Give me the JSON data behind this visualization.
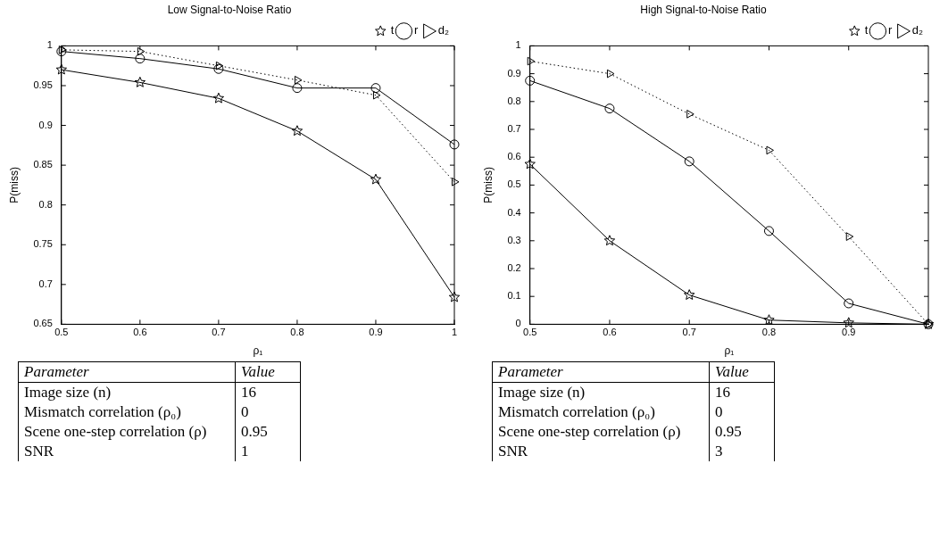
{
  "chart_data": [
    {
      "type": "line",
      "title": "Low Signal-to-Noise Ratio",
      "xlabel": "ρ₁",
      "ylabel": "P(miss)",
      "x": [
        0.5,
        0.6,
        0.7,
        0.8,
        0.9,
        1
      ],
      "xlim": [
        0.5,
        1
      ],
      "xticks": [
        0.5,
        0.6,
        0.7,
        0.8,
        0.9,
        1
      ],
      "ylim": [
        0.65,
        1
      ],
      "yticks": [
        0.65,
        0.7,
        0.75,
        0.8,
        0.85,
        0.9,
        0.95,
        1
      ],
      "legend": "top right",
      "grid": false,
      "series": [
        {
          "name": "t",
          "color": "#000000",
          "marker": "star",
          "line_style": "solid",
          "values": [
            0.97,
            0.954,
            0.934,
            0.893,
            0.832,
            0.684
          ]
        },
        {
          "name": "r",
          "color": "#000000",
          "marker": "circle",
          "line_style": "solid",
          "values": [
            0.993,
            0.984,
            0.971,
            0.947,
            0.947,
            0.876
          ]
        },
        {
          "name": "d₂",
          "color": "#000000",
          "marker": "triangle",
          "line_style": "dotted",
          "values": [
            0.995,
            0.993,
            0.975,
            0.957,
            0.938,
            0.829
          ]
        }
      ],
      "annotations": [
        "Parameter",
        "Value",
        "Image size (n)",
        "16",
        "Mismatch correlation (ρ₀)",
        "0",
        "Scene one-step correlation (ρ)",
        "0.95",
        "SNR",
        "1"
      ]
    },
    {
      "type": "line",
      "title": "High Signal-to-Noise Ratio",
      "xlabel": "ρ₁",
      "ylabel": "P(miss)",
      "x": [
        0.5,
        0.6,
        0.7,
        0.8,
        0.9,
        1
      ],
      "xlim": [
        0.5,
        1
      ],
      "xticks": [
        0.5,
        0.6,
        0.7,
        0.8,
        0.9
      ],
      "ylim": [
        0,
        1
      ],
      "yticks": [
        0,
        0.1,
        0.2,
        0.3,
        0.4,
        0.5,
        0.6,
        0.7,
        0.8,
        0.9,
        1
      ],
      "legend": "top right",
      "grid": false,
      "series": [
        {
          "name": "t",
          "color": "#000000",
          "marker": "star",
          "line_style": "solid",
          "values": [
            0.575,
            0.3,
            0.105,
            0.015,
            0.005,
            0
          ]
        },
        {
          "name": "r",
          "color": "#000000",
          "marker": "circle",
          "line_style": "solid",
          "values": [
            0.875,
            0.775,
            0.585,
            0.335,
            0.075,
            0
          ]
        },
        {
          "name": "d₂",
          "color": "#000000",
          "marker": "triangle",
          "line_style": "dotted",
          "values": [
            0.945,
            0.9,
            0.755,
            0.625,
            0.315,
            0
          ]
        }
      ],
      "annotations": [
        "Parameter",
        "Value",
        "Image size (n)",
        "16",
        "Mismatch correlation (ρ₀)",
        "0",
        "Scene one-step correlation (ρ)",
        "0.95",
        "SNR",
        "3"
      ]
    }
  ]
}
